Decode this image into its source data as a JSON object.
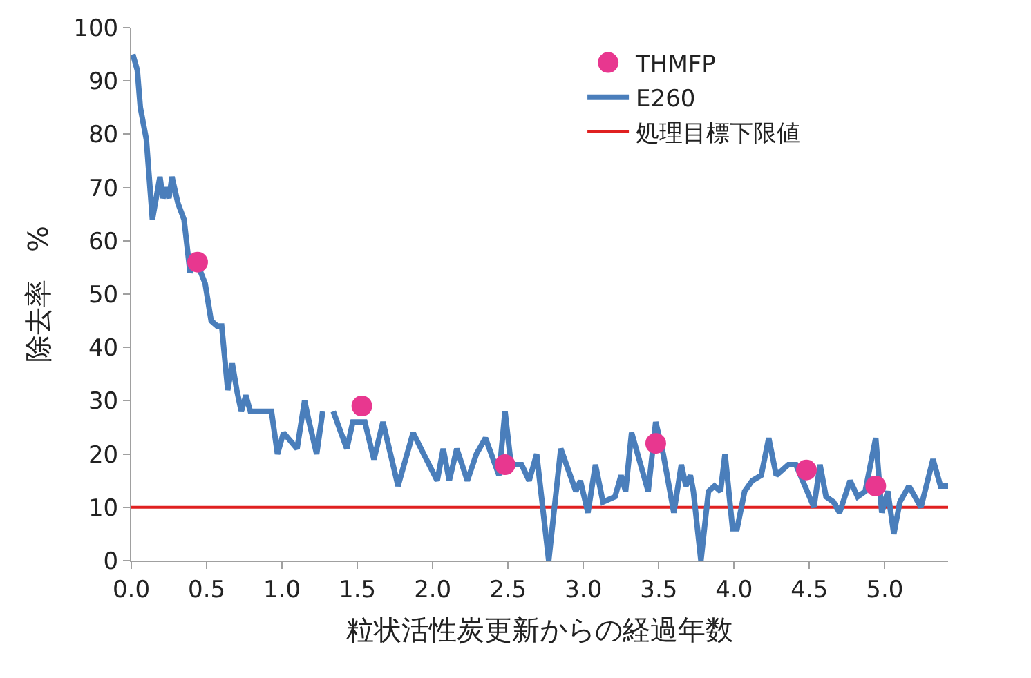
{
  "chart_data": {
    "type": "line",
    "xlabel": "粒状活性炭更新からの経過年数",
    "ylabel": "除去率　%",
    "xlim": [
      0,
      5.42
    ],
    "ylim": [
      0,
      100
    ],
    "xticks": [
      {
        "value": 0,
        "label": "0.0"
      },
      {
        "value": 0.5,
        "label": "0.5"
      },
      {
        "value": 1,
        "label": "1.0"
      },
      {
        "value": 1.5,
        "label": "1.5"
      },
      {
        "value": 2,
        "label": "2.0"
      },
      {
        "value": 2.5,
        "label": "2.5"
      },
      {
        "value": 3,
        "label": "3.0"
      },
      {
        "value": 3.5,
        "label": "3.5"
      },
      {
        "value": 4,
        "label": "4.0"
      },
      {
        "value": 4.5,
        "label": "4.5"
      },
      {
        "value": 5,
        "label": "5.0"
      }
    ],
    "yticks": [
      0,
      10,
      20,
      30,
      40,
      50,
      60,
      70,
      80,
      90,
      100
    ],
    "grid": false,
    "legend": "top right",
    "series": [
      {
        "name": "THMFP",
        "type": "scatter",
        "marker": "circle",
        "color": "#e8378f",
        "x": [
          0.44,
          1.53,
          2.48,
          3.48,
          4.48,
          4.94
        ],
        "values": [
          56,
          29,
          18,
          22,
          17,
          14
        ]
      },
      {
        "name": "E260",
        "type": "line",
        "marker": "none",
        "line_style": "solid",
        "color": "#4a7ebb",
        "x": [
          0.01,
          0.04,
          0.06,
          0.1,
          0.14,
          0.19,
          0.21,
          0.23,
          0.25,
          0.27,
          0.31,
          0.35,
          0.39,
          0.42,
          0.49,
          0.53,
          0.57,
          0.6,
          0.64,
          0.67,
          0.7,
          0.73,
          0.76,
          0.79,
          0.93,
          0.97,
          1.01,
          1.1,
          1.15,
          1.18,
          1.23,
          1.27,
          1.3,
          1.34,
          1.43,
          1.47,
          1.55,
          1.61,
          1.67,
          1.77,
          1.87,
          1.94,
          2.03,
          2.07,
          2.11,
          2.16,
          2.23,
          2.29,
          2.35,
          2.44,
          2.48,
          2.52,
          2.59,
          2.64,
          2.69,
          2.77,
          2.85,
          2.95,
          2.98,
          3.03,
          3.08,
          3.13,
          3.21,
          3.25,
          3.28,
          3.32,
          3.43,
          3.48,
          3.53,
          3.6,
          3.65,
          3.68,
          3.71,
          3.73,
          3.78,
          3.83,
          3.87,
          3.91,
          3.94,
          3.99,
          4.02,
          4.07,
          4.12,
          4.18,
          4.23,
          4.28,
          4.36,
          4.41,
          4.53,
          4.57,
          4.61,
          4.66,
          4.7,
          4.77,
          4.82,
          4.87,
          4.94,
          4.98,
          5.02,
          5.06,
          5.1,
          5.16,
          5.24,
          5.32,
          5.37,
          5.42
        ],
        "values": [
          95,
          92,
          85,
          79,
          64,
          72,
          68,
          70,
          68,
          72,
          67,
          64,
          54,
          57,
          52,
          45,
          44,
          44,
          32,
          37,
          32,
          28,
          31,
          28,
          28,
          20,
          24,
          21,
          30,
          26,
          20,
          28,
          null,
          28,
          21,
          26,
          26,
          19,
          26,
          14,
          24,
          20,
          15,
          21,
          15,
          21,
          15,
          20,
          23,
          16,
          28,
          18,
          18,
          15,
          20,
          0,
          21,
          13,
          15,
          9,
          18,
          11,
          12,
          16,
          13,
          24,
          13,
          26,
          20,
          9,
          18,
          14,
          16,
          13,
          0,
          13,
          14,
          13,
          20,
          6,
          6,
          13,
          15,
          16,
          23,
          16,
          18,
          18,
          10,
          18,
          12,
          11,
          9,
          15,
          12,
          13,
          23,
          9,
          13,
          5,
          11,
          14,
          10,
          19,
          14,
          14
        ]
      }
    ],
    "ref_lines": [
      {
        "axis": "y",
        "value": 10,
        "label": "処理目標下限値",
        "color": "#e02020",
        "line_style": "solid"
      }
    ]
  }
}
